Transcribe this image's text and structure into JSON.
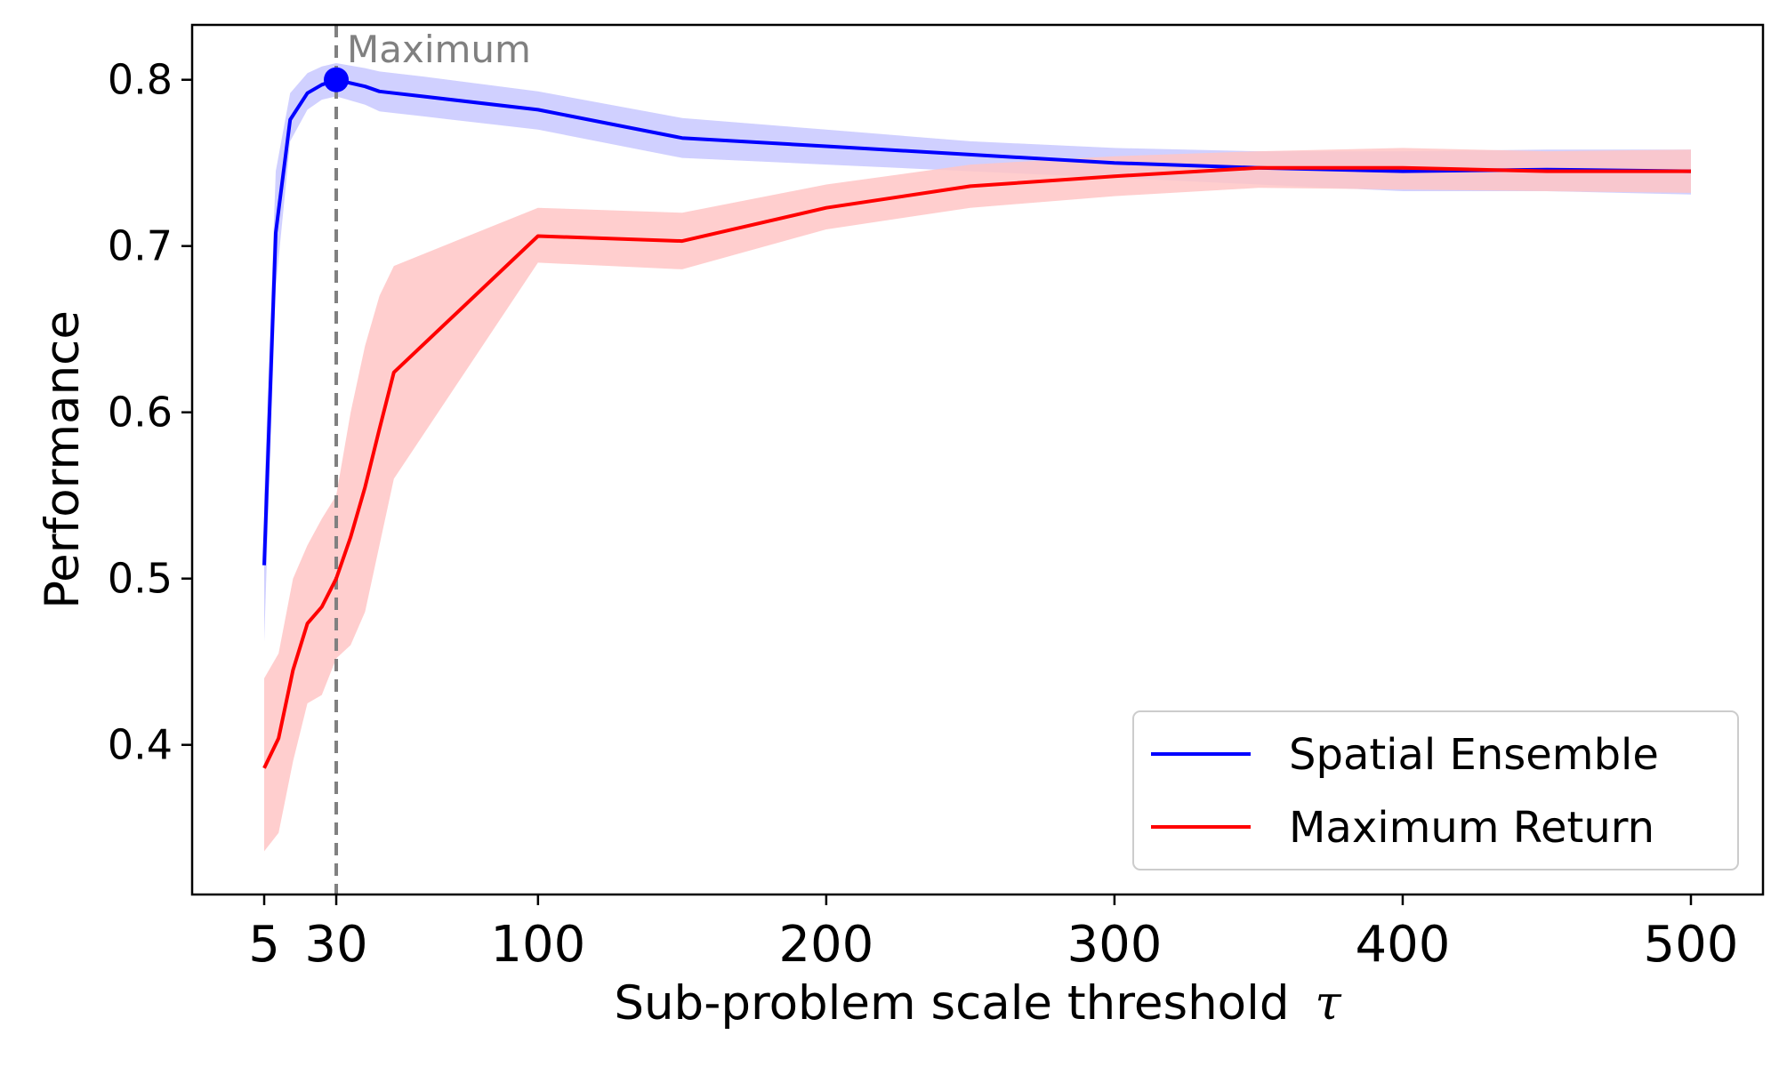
{
  "chart_data": {
    "type": "line",
    "title": "",
    "xlabel": "Sub-problem scale threshold",
    "xlabel_symbol": "τ",
    "ylabel": "Performance",
    "xlim": [
      -20,
      525
    ],
    "ylim": [
      0.31,
      0.833
    ],
    "xticks": [
      5,
      30,
      100,
      200,
      300,
      400,
      500
    ],
    "yticks": [
      0.4,
      0.5,
      0.6,
      0.7,
      0.8
    ],
    "ytick_labels": [
      "0.4",
      "0.5",
      "0.6",
      "0.7",
      "0.8"
    ],
    "grid": false,
    "legend_position": "lower-right",
    "annotation": {
      "text": "Maximum",
      "x": 30,
      "color": "#808080"
    },
    "highlight_point": {
      "x": 30,
      "y": 0.8,
      "series": "Spatial Ensemble"
    },
    "series": [
      {
        "name": "Spatial Ensemble",
        "color": "#0000ff",
        "band_color": "#c8c8ff",
        "x": [
          5,
          9,
          14,
          20,
          25,
          30,
          40,
          45,
          50,
          60,
          100,
          150,
          200,
          250,
          300,
          350,
          400,
          450,
          500
        ],
        "y": [
          0.508,
          0.708,
          0.776,
          0.792,
          0.797,
          0.8,
          0.796,
          0.793,
          0.792,
          0.79,
          0.782,
          0.765,
          0.76,
          0.755,
          0.75,
          0.747,
          0.745,
          0.746,
          0.745
        ],
        "y_upper": [
          0.55,
          0.745,
          0.792,
          0.804,
          0.808,
          0.81,
          0.807,
          0.805,
          0.804,
          0.802,
          0.793,
          0.777,
          0.77,
          0.763,
          0.759,
          0.757,
          0.757,
          0.758,
          0.758
        ],
        "y_lower": [
          0.462,
          0.675,
          0.763,
          0.782,
          0.788,
          0.79,
          0.785,
          0.781,
          0.78,
          0.778,
          0.77,
          0.753,
          0.749,
          0.745,
          0.741,
          0.737,
          0.733,
          0.733,
          0.731
        ]
      },
      {
        "name": "Maximum Return",
        "color": "#ff0000",
        "band_color": "#ffc6c6",
        "x": [
          5,
          10,
          15,
          20,
          25,
          30,
          35,
          40,
          45,
          50,
          100,
          150,
          200,
          250,
          300,
          350,
          400,
          450,
          500
        ],
        "y": [
          0.386,
          0.404,
          0.445,
          0.473,
          0.483,
          0.5,
          0.525,
          0.555,
          0.59,
          0.624,
          0.706,
          0.703,
          0.723,
          0.736,
          0.742,
          0.747,
          0.747,
          0.745,
          0.745
        ],
        "y_upper": [
          0.44,
          0.455,
          0.5,
          0.52,
          0.536,
          0.55,
          0.6,
          0.64,
          0.67,
          0.688,
          0.723,
          0.72,
          0.737,
          0.749,
          0.754,
          0.757,
          0.759,
          0.757,
          0.758
        ],
        "y_lower": [
          0.336,
          0.347,
          0.39,
          0.425,
          0.43,
          0.452,
          0.46,
          0.48,
          0.52,
          0.56,
          0.69,
          0.686,
          0.71,
          0.723,
          0.73,
          0.735,
          0.734,
          0.733,
          0.732
        ]
      }
    ]
  }
}
